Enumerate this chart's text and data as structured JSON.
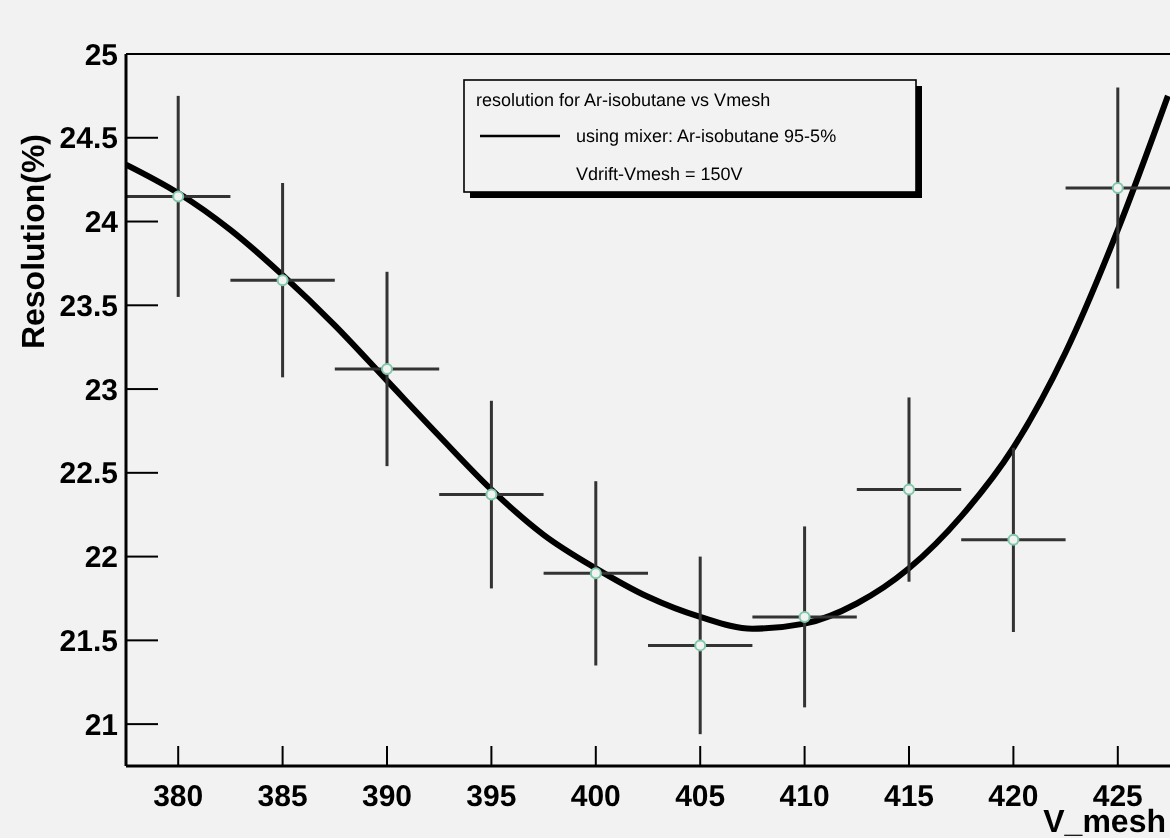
{
  "chart_data": {
    "type": "scatter",
    "xlabel": "V_mesh",
    "ylabel": "Resolution(%)",
    "legend_title": "resolution for Ar-isobutane vs Vmesh",
    "legend": "top",
    "marker": "circle",
    "annotations": [
      "Vdrift-Vmesh = 150V"
    ],
    "xlim": [
      377.5,
      427.5
    ],
    "ylim": [
      20.75,
      25
    ],
    "xticks": [
      380,
      385,
      390,
      395,
      400,
      405,
      410,
      415,
      420,
      425
    ],
    "yticks": [
      21,
      21.5,
      22,
      22.5,
      23,
      23.5,
      24,
      24.5,
      25
    ],
    "series": [
      {
        "color": "#7fc8a9",
        "x": [
          380,
          385,
          390,
          395,
          400,
          405,
          410,
          415,
          420,
          425
        ],
        "values": [
          24.15,
          23.65,
          23.12,
          22.37,
          21.9,
          21.47,
          21.64,
          22.4,
          22.1,
          24.2
        ],
        "errors": [
          0.6,
          0.58,
          0.58,
          0.56,
          0.55,
          0.53,
          0.54,
          0.55,
          0.55,
          0.6
        ],
        "xerrors": [
          2.5,
          2.5,
          2.5,
          2.5,
          2.5,
          2.5,
          2.5,
          2.5,
          2.5,
          2.5
        ]
      },
      {
        "type": "line",
        "name": "using mixer: Ar-isobutane 95-5%",
        "color": "#000000",
        "line_style": "solid",
        "marker": "none",
        "x": [
          377.5,
          380,
          382.5,
          385,
          387.5,
          390,
          392.5,
          395,
          397.5,
          400,
          402.5,
          405,
          407.5,
          410,
          412.5,
          415,
          417.5,
          420,
          422.5,
          425,
          427.4
        ],
        "values": [
          24.34,
          24.17,
          23.95,
          23.68,
          23.38,
          23.05,
          22.72,
          22.4,
          22.13,
          21.93,
          21.76,
          21.64,
          21.57,
          21.6,
          21.72,
          21.93,
          22.24,
          22.65,
          23.22,
          23.95,
          24.75
        ]
      }
    ]
  }
}
